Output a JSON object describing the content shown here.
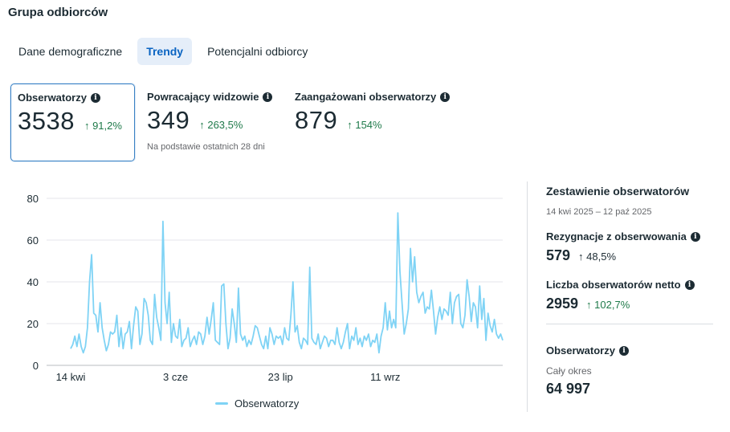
{
  "page": {
    "title": "Grupa odbiorców"
  },
  "tabs": [
    {
      "label": "Dane demograficzne"
    },
    {
      "label": "Trendy"
    },
    {
      "label": "Potencjalni odbiorcy"
    }
  ],
  "metrics": [
    {
      "label": "Obserwatorzy",
      "value": "3538",
      "change": "↑ 91,2%"
    },
    {
      "label": "Powracający widzowie",
      "value": "349",
      "change": "↑ 263,5%",
      "note": "Na podstawie ostatnich 28 dni"
    },
    {
      "label": "Zaangażowani obserwatorzy",
      "value": "879",
      "change": "↑ 154%"
    }
  ],
  "chart_data": {
    "type": "line",
    "title": "",
    "xlabel": "",
    "ylabel": "",
    "ylim": [
      0,
      80
    ],
    "yticks": [
      "0",
      "20",
      "40",
      "60",
      "80"
    ],
    "x_ticks": [
      {
        "label": "14 kwi",
        "index": 0
      },
      {
        "label": "3 cze",
        "index": 50
      },
      {
        "label": "23 lip",
        "index": 100
      },
      {
        "label": "11 wrz",
        "index": 150
      }
    ],
    "series": [
      {
        "name": "Obserwatorzy",
        "color": "#7fd3f5",
        "values": [
          8,
          10,
          14,
          9,
          15,
          9,
          6,
          9,
          18,
          40,
          53,
          25,
          24,
          16,
          30,
          18,
          12,
          7,
          10,
          16,
          15,
          16,
          24,
          9,
          18,
          8,
          15,
          16,
          21,
          8,
          19,
          28,
          26,
          10,
          15,
          32,
          30,
          24,
          12,
          10,
          34,
          23,
          18,
          12,
          69,
          30,
          20,
          35,
          11,
          20,
          14,
          13,
          22,
          9,
          12,
          13,
          18,
          9,
          12,
          14,
          10,
          16,
          15,
          10,
          14,
          23,
          15,
          22,
          30,
          12,
          11,
          10,
          38,
          39,
          20,
          8,
          13,
          27,
          20,
          11,
          37,
          15,
          12,
          14,
          9,
          12,
          10,
          14,
          19,
          18,
          14,
          10,
          8,
          14,
          8,
          18,
          15,
          10,
          14,
          13,
          14,
          10,
          18,
          13,
          12,
          24,
          40,
          16,
          19,
          11,
          8,
          13,
          12,
          10,
          47,
          13,
          11,
          10,
          15,
          8,
          11,
          14,
          13,
          9,
          12,
          12,
          10,
          18,
          11,
          8,
          11,
          16,
          20,
          8,
          14,
          12,
          18,
          10,
          13,
          9,
          14,
          12,
          15,
          9,
          12,
          11,
          15,
          6,
          14,
          18,
          30,
          17,
          26,
          18,
          22,
          18,
          73,
          45,
          30,
          15,
          20,
          27,
          56,
          40,
          52,
          35,
          30,
          33,
          35,
          25,
          28,
          27,
          36,
          26,
          15,
          23,
          28,
          22,
          27,
          26,
          24,
          35,
          20,
          30,
          33,
          34,
          20,
          18,
          24,
          41,
          33,
          21,
          30,
          28,
          18,
          38,
          22,
          32,
          12,
          25,
          19,
          16,
          22,
          15,
          13,
          15,
          12
        ]
      }
    ]
  },
  "legend": {
    "label": "Obserwatorzy"
  },
  "summary": {
    "title": "Zestawienie obserwatorów",
    "date_range": "14 kwi 2025 – 12 paź 2025",
    "unfollows": {
      "label": "Rezygnacje z obserwowania",
      "value": "579",
      "change": "↑ 48,5%"
    },
    "net": {
      "label": "Liczba obserwatorów netto",
      "value": "2959",
      "change": "↑ 102,7%"
    },
    "total": {
      "label": "Obserwatorzy",
      "period": "Cały okres",
      "value": "64 997"
    }
  },
  "colors": {
    "accent": "#0a64c2",
    "tab_active_bg": "#e5eef9",
    "positive": "#1f7a4a",
    "line": "#7fd3f5"
  },
  "icons": {
    "info": "info-icon"
  }
}
